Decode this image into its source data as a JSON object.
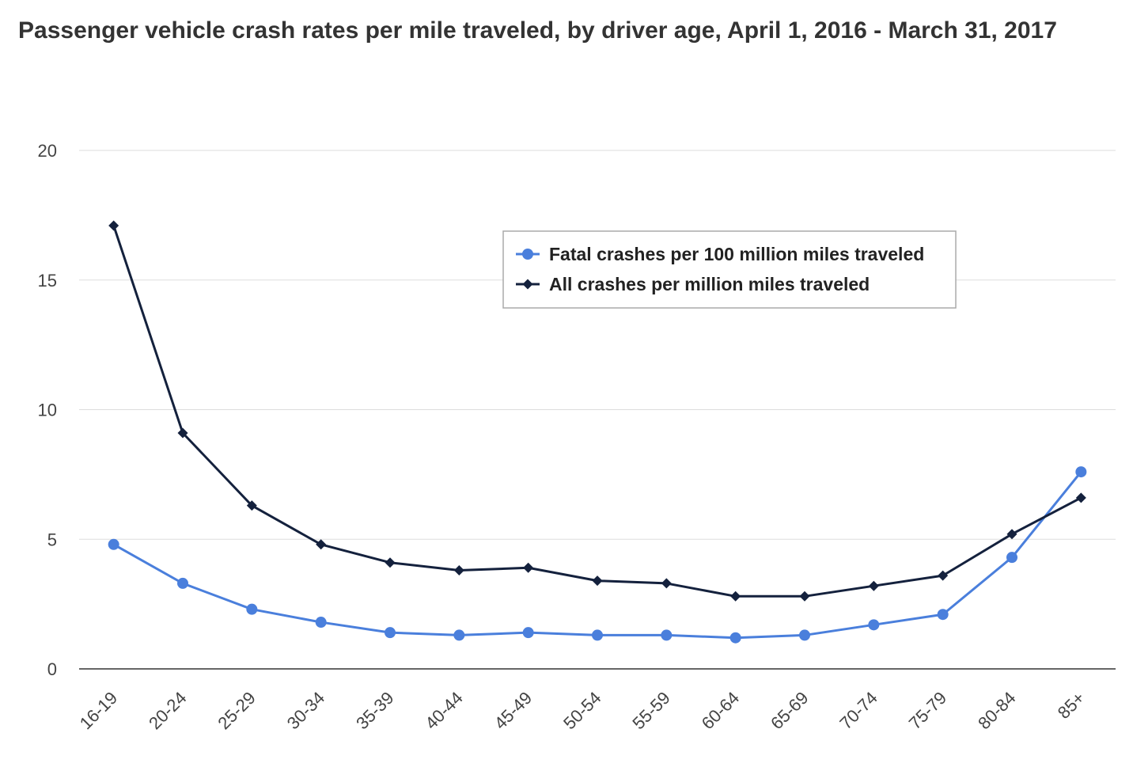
{
  "chart_data": {
    "type": "line",
    "title": "Passenger vehicle crash rates per mile traveled, by driver age, April 1, 2016 - March 31, 2017",
    "xlabel": "",
    "ylabel": "",
    "categories": [
      "16-19",
      "20-24",
      "25-29",
      "30-34",
      "35-39",
      "40-44",
      "45-49",
      "50-54",
      "55-59",
      "60-64",
      "65-69",
      "70-74",
      "75-79",
      "80-84",
      "85+"
    ],
    "ylim": [
      0,
      20
    ],
    "yticks": [
      0,
      5,
      10,
      15,
      20
    ],
    "grid": true,
    "legend_position": "top-right",
    "series": [
      {
        "name": "Fatal crashes per 100 million miles traveled",
        "color": "#4a7fdc",
        "marker": "circle",
        "values": [
          4.8,
          3.3,
          2.3,
          1.8,
          1.4,
          1.3,
          1.4,
          1.3,
          1.3,
          1.2,
          1.3,
          1.7,
          2.1,
          4.3,
          7.6
        ]
      },
      {
        "name": "All crashes per million miles traveled",
        "color": "#14213d",
        "marker": "diamond",
        "values": [
          17.1,
          9.1,
          6.3,
          4.8,
          4.1,
          3.8,
          3.9,
          3.4,
          3.3,
          2.8,
          2.8,
          3.2,
          3.6,
          5.2,
          6.6
        ]
      }
    ]
  }
}
